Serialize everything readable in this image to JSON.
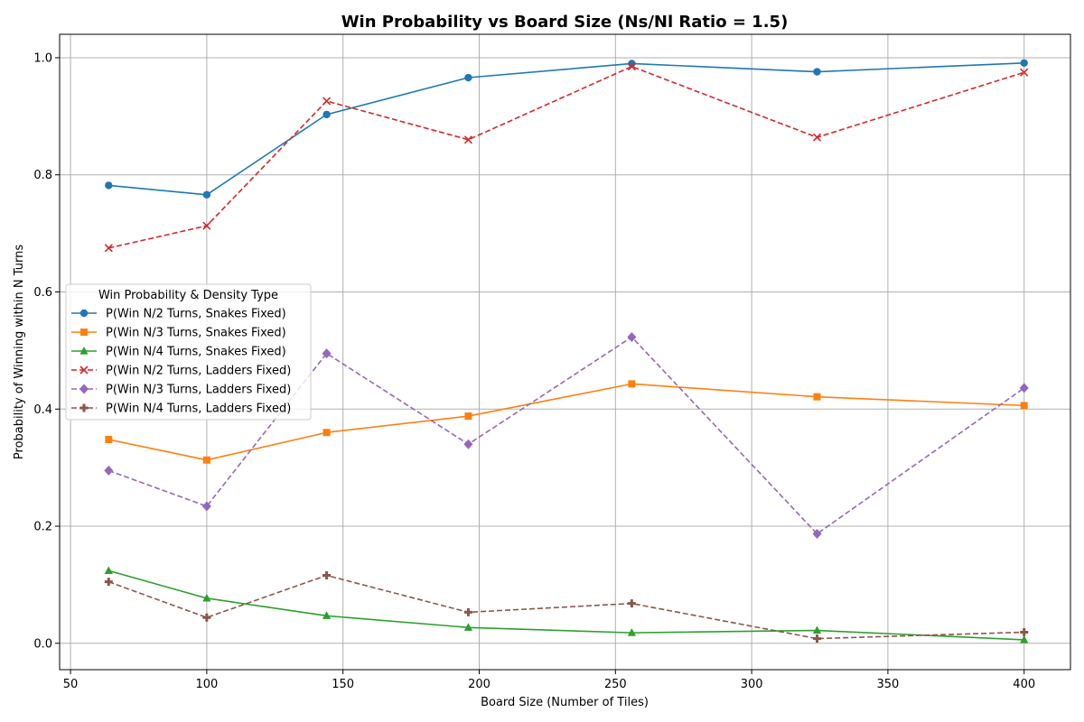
{
  "chart_data": {
    "type": "line",
    "title": "Win Probability vs Board Size (Ns/Nl Ratio = 1.5)",
    "xlabel": "Board Size (Number of Tiles)",
    "ylabel": "Probability of Winning within N Turns",
    "xlim": [
      46,
      417
    ],
    "ylim": [
      -0.045,
      1.04
    ],
    "xticks": [
      50,
      100,
      150,
      200,
      250,
      300,
      350,
      400
    ],
    "yticks": [
      0.0,
      0.2,
      0.4,
      0.6,
      0.8,
      1.0
    ],
    "grid": true,
    "legend": {
      "title": "Win Probability & Density Type",
      "placement": "center-left"
    },
    "x": [
      64,
      100,
      144,
      196,
      256,
      324,
      400
    ],
    "series": [
      {
        "name": "P(Win N/2 Turns, Snakes Fixed)",
        "color": "#1f77b4",
        "linestyle": "solid",
        "marker": "circle",
        "values": [
          0.782,
          0.766,
          0.903,
          0.966,
          0.99,
          0.976,
          0.991
        ]
      },
      {
        "name": "P(Win N/3 Turns, Snakes Fixed)",
        "color": "#ff7f0e",
        "linestyle": "solid",
        "marker": "square",
        "values": [
          0.348,
          0.313,
          0.36,
          0.388,
          0.443,
          0.421,
          0.406
        ]
      },
      {
        "name": "P(Win N/4 Turns, Snakes Fixed)",
        "color": "#2ca02c",
        "linestyle": "solid",
        "marker": "triangle",
        "values": [
          0.124,
          0.077,
          0.047,
          0.027,
          0.018,
          0.022,
          0.006
        ]
      },
      {
        "name": "P(Win N/2 Turns, Ladders Fixed)",
        "color": "#d62728",
        "linestyle": "dashed",
        "marker": "x",
        "values": [
          0.675,
          0.713,
          0.926,
          0.86,
          0.985,
          0.864,
          0.975
        ]
      },
      {
        "name": "P(Win N/3 Turns, Ladders Fixed)",
        "color": "#9467bd",
        "linestyle": "dashed",
        "marker": "diamond",
        "values": [
          0.295,
          0.234,
          0.495,
          0.34,
          0.523,
          0.187,
          0.436
        ]
      },
      {
        "name": "P(Win N/4 Turns, Ladders Fixed)",
        "color": "#8c564b",
        "linestyle": "dashed",
        "marker": "plus",
        "values": [
          0.105,
          0.044,
          0.116,
          0.053,
          0.068,
          0.008,
          0.019
        ]
      }
    ]
  }
}
